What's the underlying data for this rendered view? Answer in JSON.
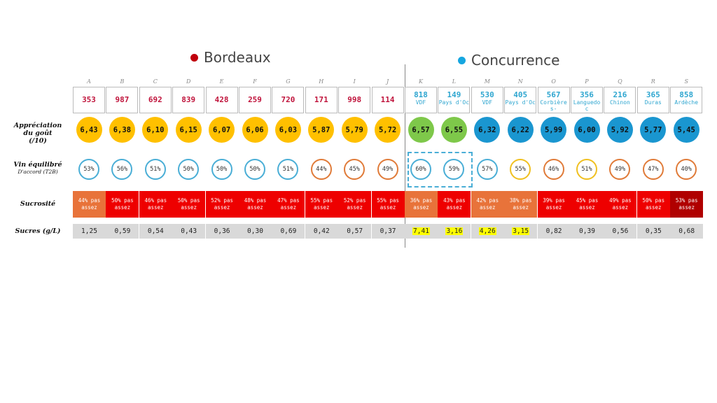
{
  "groups": {
    "bordeaux": {
      "label": "Bordeaux",
      "color": "#c0000c"
    },
    "concurrence": {
      "label": "Concurrence",
      "color": "#16a6e0"
    }
  },
  "row_labels": {
    "appreciation": [
      "Appréciation",
      "du goût",
      "(/10)"
    ],
    "equilibre": "Vin équilibré",
    "equilibre_sub": "D'accord (T2B)",
    "sucrosite": "Sucrosité",
    "sucres": "Sucres (g/L)"
  },
  "colors": {
    "gold": "#ffc000",
    "green": "#7ec84a",
    "blue": "#1a96d0",
    "ring_blue": "#4aaed6",
    "ring_orange": "#e07b39",
    "ring_yellow": "#f0c020",
    "code_bordeaux": "#c0143c",
    "code_concurrence": "#2fa6d0"
  },
  "chart_data": {
    "type": "table",
    "columns": [
      {
        "letter": "A",
        "code": "353",
        "sub": "",
        "group": "bordeaux",
        "score": "6,43",
        "score_color": "gold",
        "equilibre": "53%",
        "ring": "ring_blue",
        "sucrosite": "44% pas assez",
        "sucro_color": "#e8733a",
        "sucres": "1,25",
        "sucres_hl": false
      },
      {
        "letter": "B",
        "code": "987",
        "sub": "",
        "group": "bordeaux",
        "score": "6,38",
        "score_color": "gold",
        "equilibre": "56%",
        "ring": "ring_blue",
        "sucrosite": "50% pas assez",
        "sucro_color": "#ee0000",
        "sucres": "0,59",
        "sucres_hl": false
      },
      {
        "letter": "C",
        "code": "692",
        "sub": "",
        "group": "bordeaux",
        "score": "6,10",
        "score_color": "gold",
        "equilibre": "51%",
        "ring": "ring_blue",
        "sucrosite": "46% pas assez",
        "sucro_color": "#ee0000",
        "sucres": "0,54",
        "sucres_hl": false
      },
      {
        "letter": "D",
        "code": "839",
        "sub": "",
        "group": "bordeaux",
        "score": "6,15",
        "score_color": "gold",
        "equilibre": "50%",
        "ring": "ring_blue",
        "sucrosite": "50% pas assez",
        "sucro_color": "#ee0000",
        "sucres": "0,43",
        "sucres_hl": false
      },
      {
        "letter": "E",
        "code": "428",
        "sub": "",
        "group": "bordeaux",
        "score": "6,07",
        "score_color": "gold",
        "equilibre": "50%",
        "ring": "ring_blue",
        "sucrosite": "52% pas assez",
        "sucro_color": "#ee0000",
        "sucres": "0,36",
        "sucres_hl": false
      },
      {
        "letter": "F",
        "code": "259",
        "sub": "",
        "group": "bordeaux",
        "score": "6,06",
        "score_color": "gold",
        "equilibre": "50%",
        "ring": "ring_blue",
        "sucrosite": "48% pas assez",
        "sucro_color": "#ee0000",
        "sucres": "0,30",
        "sucres_hl": false
      },
      {
        "letter": "G",
        "code": "720",
        "sub": "",
        "group": "bordeaux",
        "score": "6,03",
        "score_color": "gold",
        "equilibre": "51%",
        "ring": "ring_blue",
        "sucrosite": "47% pas assez",
        "sucro_color": "#ee0000",
        "sucres": "0,69",
        "sucres_hl": false
      },
      {
        "letter": "H",
        "code": "171",
        "sub": "",
        "group": "bordeaux",
        "score": "5,87",
        "score_color": "gold",
        "equilibre": "44%",
        "ring": "ring_orange",
        "sucrosite": "55% pas assez",
        "sucro_color": "#ee0000",
        "sucres": "0,42",
        "sucres_hl": false
      },
      {
        "letter": "I",
        "code": "998",
        "sub": "",
        "group": "bordeaux",
        "score": "5,79",
        "score_color": "gold",
        "equilibre": "45%",
        "ring": "ring_orange",
        "sucrosite": "52% pas assez",
        "sucro_color": "#ee0000",
        "sucres": "0,57",
        "sucres_hl": false
      },
      {
        "letter": "J",
        "code": "114",
        "sub": "",
        "group": "bordeaux",
        "score": "5,72",
        "score_color": "gold",
        "equilibre": "49%",
        "ring": "ring_orange",
        "sucrosite": "55% pas assez",
        "sucro_color": "#ee0000",
        "sucres": "0,37",
        "sucres_hl": false
      },
      {
        "letter": "K",
        "code": "818",
        "sub": "VDF",
        "group": "concurrence",
        "score": "6,57",
        "score_color": "green",
        "equilibre": "60%",
        "ring": "ring_blue",
        "sucrosite": "36% pas assez",
        "sucro_color": "#e8733a",
        "sucres": "7,41",
        "sucres_hl": true
      },
      {
        "letter": "L",
        "code": "149",
        "sub": "Pays d'Oc",
        "group": "concurrence",
        "score": "6,55",
        "score_color": "green",
        "equilibre": "59%",
        "ring": "ring_blue",
        "sucrosite": "43% pas assez",
        "sucro_color": "#ee0000",
        "sucres": "3,16",
        "sucres_hl": true
      },
      {
        "letter": "M",
        "code": "530",
        "sub": "VDF",
        "group": "concurrence",
        "score": "6,32",
        "score_color": "blue",
        "equilibre": "57%",
        "ring": "ring_blue",
        "sucrosite": "42% pas assez",
        "sucro_color": "#e8733a",
        "sucres": "4,26",
        "sucres_hl": true
      },
      {
        "letter": "N",
        "code": "405",
        "sub": "Pays d'Oc",
        "group": "concurrence",
        "score": "6,22",
        "score_color": "blue",
        "equilibre": "55%",
        "ring": "ring_yellow",
        "sucrosite": "38% pas assez",
        "sucro_color": "#e8733a",
        "sucres": "3,15",
        "sucres_hl": true
      },
      {
        "letter": "O",
        "code": "567",
        "sub": "Corbière s-",
        "group": "concurrence",
        "score": "5,99",
        "score_color": "blue",
        "equilibre": "46%",
        "ring": "ring_orange",
        "sucrosite": "39% pas assez",
        "sucro_color": "#ee0000",
        "sucres": "0,82",
        "sucres_hl": false
      },
      {
        "letter": "P",
        "code": "356",
        "sub": "Languedo c",
        "group": "concurrence",
        "score": "6,00",
        "score_color": "blue",
        "equilibre": "51%",
        "ring": "ring_yellow",
        "sucrosite": "45% pas assez",
        "sucro_color": "#ee0000",
        "sucres": "0,39",
        "sucres_hl": false
      },
      {
        "letter": "Q",
        "code": "216",
        "sub": "Chinon",
        "group": "concurrence",
        "score": "5,92",
        "score_color": "blue",
        "equilibre": "49%",
        "ring": "ring_orange",
        "sucrosite": "49% pas assez",
        "sucro_color": "#ee0000",
        "sucres": "0,56",
        "sucres_hl": false
      },
      {
        "letter": "R",
        "code": "365",
        "sub": "Duras",
        "group": "concurrence",
        "score": "5,77",
        "score_color": "blue",
        "equilibre": "47%",
        "ring": "ring_orange",
        "sucrosite": "50% pas assez",
        "sucro_color": "#ee0000",
        "sucres": "0,35",
        "sucres_hl": false
      },
      {
        "letter": "S",
        "code": "858",
        "sub": "Ardèche",
        "group": "concurrence",
        "score": "5,45",
        "score_color": "blue",
        "equilibre": "40%",
        "ring": "ring_orange",
        "sucrosite": "53% pas assez",
        "sucro_color": "#b00000",
        "sucres": "0,68",
        "sucres_hl": false
      }
    ]
  }
}
